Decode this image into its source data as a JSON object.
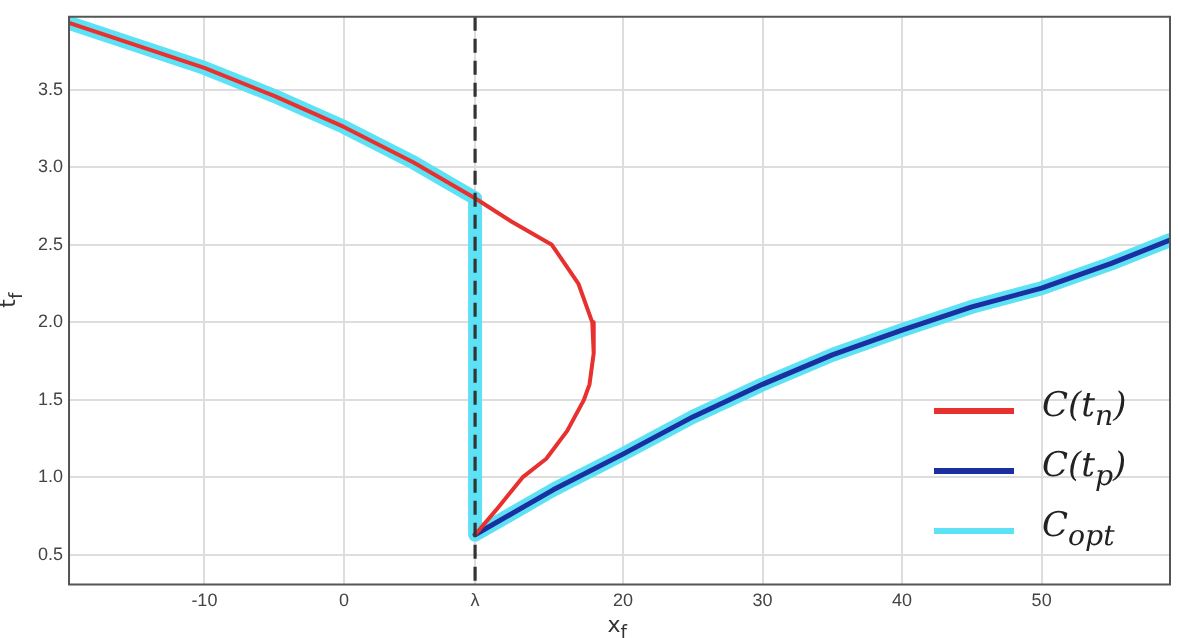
{
  "chart_data": {
    "type": "line",
    "xlabel": "x$_{f}$",
    "ylabel": "t$_{f}$",
    "xlim": [
      -19.7,
      59.2
    ],
    "ylim": [
      0.31,
      3.97
    ],
    "xticks": [
      -10,
      0,
      {
        "value": 9.4,
        "label": "λ"
      },
      20,
      30,
      40,
      50
    ],
    "yticks": [
      0.5,
      {
        "value": 1,
        "label": "1.0"
      },
      1.5,
      {
        "value": 2,
        "label": "2.0"
      },
      2.5,
      {
        "value": 3,
        "label": "3.0"
      },
      3.5
    ],
    "grid": true,
    "legend": "bottom right",
    "marker": "none",
    "line_style": "solid",
    "ref_lines": [
      {
        "axis": "x",
        "value": 9.4,
        "color": "#333333",
        "line_style": "dashed"
      }
    ],
    "series": [
      {
        "name": "C(t$_{n}$)",
        "color": "#e8302f",
        "x": [
          -19.7,
          -10,
          -5,
          0,
          5,
          9.4,
          12.0,
          14.9,
          16.8,
          17.8,
          17.9,
          17.6,
          17.2,
          16.0,
          14.5,
          12.8,
          11.0,
          9.4
        ],
        "values": [
          3.93,
          3.64,
          3.46,
          3.26,
          3.03,
          2.8,
          2.65,
          2.5,
          2.25,
          2.0,
          1.8,
          1.6,
          1.5,
          1.3,
          1.12,
          1.0,
          0.8,
          0.63
        ]
      },
      {
        "name": "C(t$_{p}$)",
        "color": "#1a2fa0",
        "x": [
          9.4,
          15,
          20,
          25,
          30,
          35,
          40,
          45,
          50,
          55,
          59.2
        ],
        "values": [
          0.63,
          0.92,
          1.15,
          1.39,
          1.6,
          1.79,
          1.95,
          2.1,
          2.22,
          2.38,
          2.53
        ]
      },
      {
        "name": "C$_{opt}$",
        "color": "#5ce1f5",
        "x": [
          -19.7,
          -10,
          -5,
          0,
          5,
          9.4,
          9.4,
          15,
          20,
          25,
          30,
          35,
          40,
          45,
          50,
          55,
          59.2
        ],
        "values": [
          3.93,
          3.64,
          3.46,
          3.26,
          3.03,
          2.8,
          0.63,
          0.92,
          1.15,
          1.39,
          1.6,
          1.79,
          1.95,
          2.1,
          2.22,
          2.38,
          2.53
        ]
      }
    ]
  }
}
